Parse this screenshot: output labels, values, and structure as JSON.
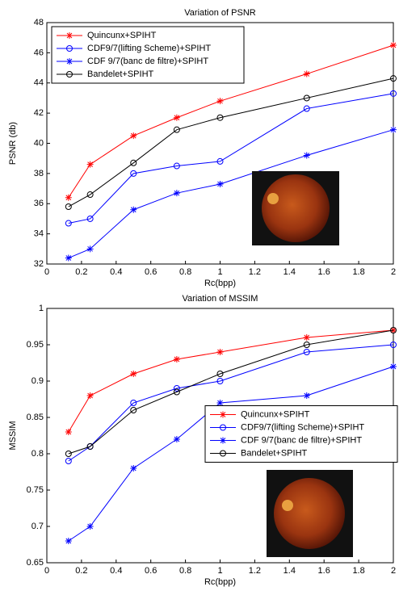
{
  "chart_data": [
    {
      "type": "line",
      "title": "Variation of PSNR",
      "x_label": "Rc(bpp)",
      "y_label": "PSNR (db)",
      "x": [
        0.125,
        0.25,
        0.5,
        0.75,
        1,
        1.5,
        2
      ],
      "xlim": [
        0,
        2
      ],
      "xticks": [
        0,
        0.2,
        0.4,
        0.6,
        0.8,
        1,
        1.2,
        1.4,
        1.6,
        1.8,
        2
      ],
      "ylim": [
        32,
        48
      ],
      "yticks": [
        32,
        34,
        36,
        38,
        40,
        42,
        44,
        46,
        48
      ],
      "legend": "upper left",
      "series": [
        {
          "name": "Quincunx+SPIHT",
          "color": "#ff0000",
          "marker": "star",
          "values": [
            36.4,
            38.6,
            40.5,
            41.7,
            42.8,
            44.6,
            46.5
          ]
        },
        {
          "name": "CDF9/7(lifting Scheme)+SPIHT",
          "color": "#0000ff",
          "marker": "circle",
          "values": [
            34.7,
            35.0,
            38.0,
            38.5,
            38.8,
            42.3,
            43.3
          ]
        },
        {
          "name": "CDF 9/7(banc de filtre)+SPIHT",
          "color": "#0000ff",
          "marker": "star",
          "values": [
            32.4,
            33.0,
            35.6,
            36.7,
            37.3,
            39.2,
            40.9
          ]
        },
        {
          "name": "Bandelet+SPIHT",
          "color": "#000000",
          "marker": "circle",
          "values": [
            35.8,
            36.6,
            38.7,
            40.9,
            41.7,
            43.0,
            44.3
          ]
        }
      ]
    },
    {
      "type": "line",
      "title": "Variation of MSSIM",
      "x_label": "Rc(bpp)",
      "y_label": "MSSIM",
      "x": [
        0.125,
        0.25,
        0.5,
        0.75,
        1,
        1.5,
        2
      ],
      "xlim": [
        0,
        2
      ],
      "xticks": [
        0,
        0.2,
        0.4,
        0.6,
        0.8,
        1,
        1.2,
        1.4,
        1.6,
        1.8,
        2
      ],
      "ylim": [
        0.65,
        1
      ],
      "yticks": [
        0.65,
        0.7,
        0.75,
        0.8,
        0.85,
        0.9,
        0.95,
        1
      ],
      "legend": "center right",
      "series": [
        {
          "name": "Quincunx+SPIHT",
          "color": "#ff0000",
          "marker": "star",
          "values": [
            0.83,
            0.88,
            0.91,
            0.93,
            0.94,
            0.96,
            0.97
          ]
        },
        {
          "name": "CDF9/7(lifting Scheme)+SPIHT",
          "color": "#0000ff",
          "marker": "circle",
          "values": [
            0.79,
            0.81,
            0.87,
            0.89,
            0.9,
            0.94,
            0.95
          ]
        },
        {
          "name": "CDF 9/7(banc de filtre)+SPIHT",
          "color": "#0000ff",
          "marker": "star",
          "values": [
            0.68,
            0.7,
            0.78,
            0.82,
            0.87,
            0.88,
            0.92
          ]
        },
        {
          "name": "Bandelet+SPIHT",
          "color": "#000000",
          "marker": "circle",
          "values": [
            0.8,
            0.81,
            0.86,
            0.885,
            0.91,
            0.95,
            0.97
          ]
        }
      ]
    }
  ]
}
